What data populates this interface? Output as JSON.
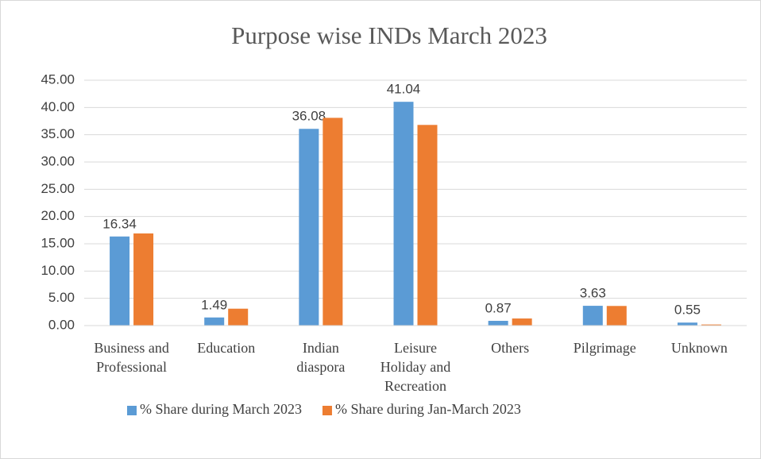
{
  "chart_data": {
    "type": "bar",
    "title": "Purpose wise INDs March 2023",
    "categories": [
      "Business and Professional",
      "Education",
      "Indian diaspora",
      "Leisure Holiday and Recreation",
      "Others",
      "Pilgrimage",
      "Unknown"
    ],
    "series": [
      {
        "name": "% Share during March 2023",
        "color": "#5b9bd5",
        "values": [
          16.34,
          1.49,
          36.08,
          41.04,
          0.87,
          3.63,
          0.55
        ],
        "show_values": true
      },
      {
        "name": "% Share during Jan-March 2023",
        "color": "#ed7d31",
        "values": [
          16.9,
          3.1,
          38.1,
          36.8,
          1.3,
          3.6,
          0.2
        ],
        "show_values": false
      }
    ],
    "ylim": [
      0,
      45
    ],
    "yticks": [
      {
        "value": 0,
        "label": "0.00"
      },
      {
        "value": 5,
        "label": "5.00"
      },
      {
        "value": 10,
        "label": "10.00"
      },
      {
        "value": 15,
        "label": "15.00"
      },
      {
        "value": 20,
        "label": "20.00"
      },
      {
        "value": 25,
        "label": "25.00"
      },
      {
        "value": 30,
        "label": "30.00"
      },
      {
        "value": 35,
        "label": "35.00"
      },
      {
        "value": 40,
        "label": "40.00"
      },
      {
        "value": 45,
        "label": "45.00"
      }
    ],
    "grid": true,
    "legend": "bottom"
  }
}
